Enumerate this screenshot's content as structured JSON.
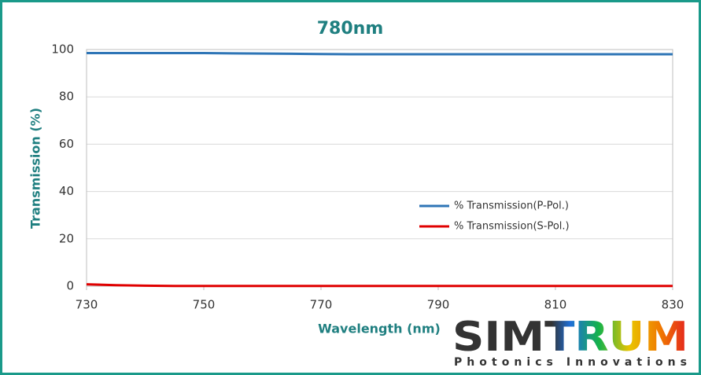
{
  "chart_data": {
    "type": "line",
    "title": "780nm",
    "x_label": "Wavelength (nm)",
    "y_label": "Transmission (%)",
    "x": [
      730,
      735,
      740,
      745,
      750,
      755,
      760,
      765,
      770,
      775,
      780,
      785,
      790,
      795,
      800,
      805,
      810,
      815,
      820,
      825,
      830
    ],
    "series": [
      {
        "name": "% Transmission(P-Pol.)",
        "color": "#2e75b6",
        "values": [
          98.5,
          98.5,
          98.5,
          98.5,
          98.5,
          98.4,
          98.3,
          98.2,
          98.1,
          98.0,
          98.0,
          98.0,
          98.0,
          98.0,
          98.0,
          98.0,
          98.0,
          98.0,
          98.0,
          98.0,
          98.0
        ]
      },
      {
        "name": "% Transmission(S-Pol.)",
        "color": "#e00000",
        "values": [
          0.8,
          0.4,
          0.2,
          0.1,
          0.1,
          0.1,
          0.1,
          0.1,
          0.1,
          0.1,
          0.1,
          0.1,
          0.1,
          0.1,
          0.1,
          0.1,
          0.1,
          0.1,
          0.1,
          0.1,
          0.1
        ]
      }
    ],
    "xlim": [
      730,
      830
    ],
    "xticks": [
      730,
      750,
      770,
      790,
      810,
      830
    ],
    "ylim": [
      0,
      100
    ],
    "yticks": [
      0,
      20,
      40,
      60,
      80,
      100
    ],
    "grid": true,
    "legend": "right"
  },
  "logo": {
    "name": "SIMTRUM",
    "tagline": "Photonics Innovations"
  }
}
